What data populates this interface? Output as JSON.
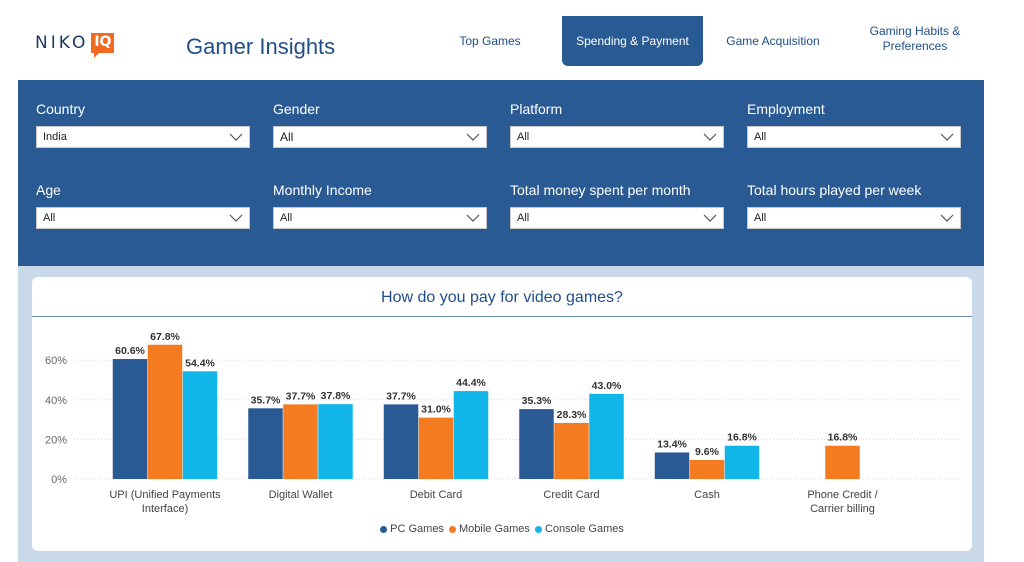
{
  "brand": {
    "logo_text": "NIKO",
    "logo_badge": "IQ",
    "app_title": "Gamer Insights"
  },
  "tabs": [
    {
      "label": "Top Games",
      "active": false
    },
    {
      "label": "Spending & Payment",
      "active": true
    },
    {
      "label": "Game Acquisition",
      "active": false
    },
    {
      "label": "Gaming Habits & Preferences",
      "active": false
    }
  ],
  "filters": [
    {
      "label": "Country",
      "value": "India"
    },
    {
      "label": "Gender",
      "value": "All"
    },
    {
      "label": "Platform",
      "value": "All"
    },
    {
      "label": "Employment",
      "value": "All"
    },
    {
      "label": "Age",
      "value": "All"
    },
    {
      "label": "Monthly Income",
      "value": "All"
    },
    {
      "label": "Total money spent per month",
      "value": "All"
    },
    {
      "label": "Total hours played per week",
      "value": "All"
    }
  ],
  "colors": {
    "pc": "#2a5a94",
    "mobile": "#f47b20",
    "console": "#12b5e8",
    "panel": "#2a5a94"
  },
  "chart_data": {
    "type": "bar",
    "title": "How do you pay for video games?",
    "categories": [
      "UPI (Unified Payments Interface)",
      "Digital Wallet",
      "Debit Card",
      "Credit Card",
      "Cash",
      "Phone Credit / Carrier billing"
    ],
    "series": [
      {
        "name": "PC Games",
        "values": [
          60.6,
          35.7,
          37.7,
          35.3,
          13.4,
          null
        ]
      },
      {
        "name": "Mobile Games",
        "values": [
          67.8,
          37.7,
          31.0,
          28.3,
          9.6,
          16.8
        ]
      },
      {
        "name": "Console Games",
        "values": [
          54.4,
          37.8,
          44.4,
          43.0,
          16.8,
          null
        ]
      }
    ],
    "yticks": [
      "0%",
      "20%",
      "40%",
      "60%"
    ],
    "ylim": [
      0,
      70
    ],
    "grid": true,
    "legend_position": "bottom"
  }
}
